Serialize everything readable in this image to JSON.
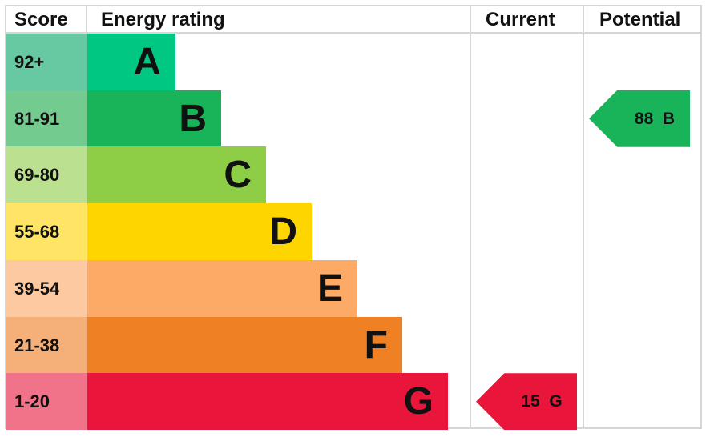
{
  "chart_data": {
    "type": "table",
    "columns": [
      "Score",
      "Energy rating",
      "Current",
      "Potential"
    ],
    "bands": [
      {
        "score": "92+",
        "letter": "A",
        "color": "#00c781",
        "score_color": "#66c9a1"
      },
      {
        "score": "81-91",
        "letter": "B",
        "color": "#19b459",
        "score_color": "#74cb8f"
      },
      {
        "score": "69-80",
        "letter": "C",
        "color": "#8dce46",
        "score_color": "#bbe08f"
      },
      {
        "score": "55-68",
        "letter": "D",
        "color": "#ffd500",
        "score_color": "#ffe466"
      },
      {
        "score": "39-54",
        "letter": "E",
        "color": "#fcaa65",
        "score_color": "#fdc9a0"
      },
      {
        "score": "21-38",
        "letter": "F",
        "color": "#ef8023",
        "score_color": "#f5b07a"
      },
      {
        "score": "1-20",
        "letter": "G",
        "color": "#e9153b",
        "score_color": "#f07389"
      }
    ],
    "current": {
      "value": 15,
      "letter": "G",
      "label": "15  G",
      "color": "#e9153b"
    },
    "potential": {
      "value": 88,
      "letter": "B",
      "label": "88  B",
      "color": "#19b459"
    }
  }
}
